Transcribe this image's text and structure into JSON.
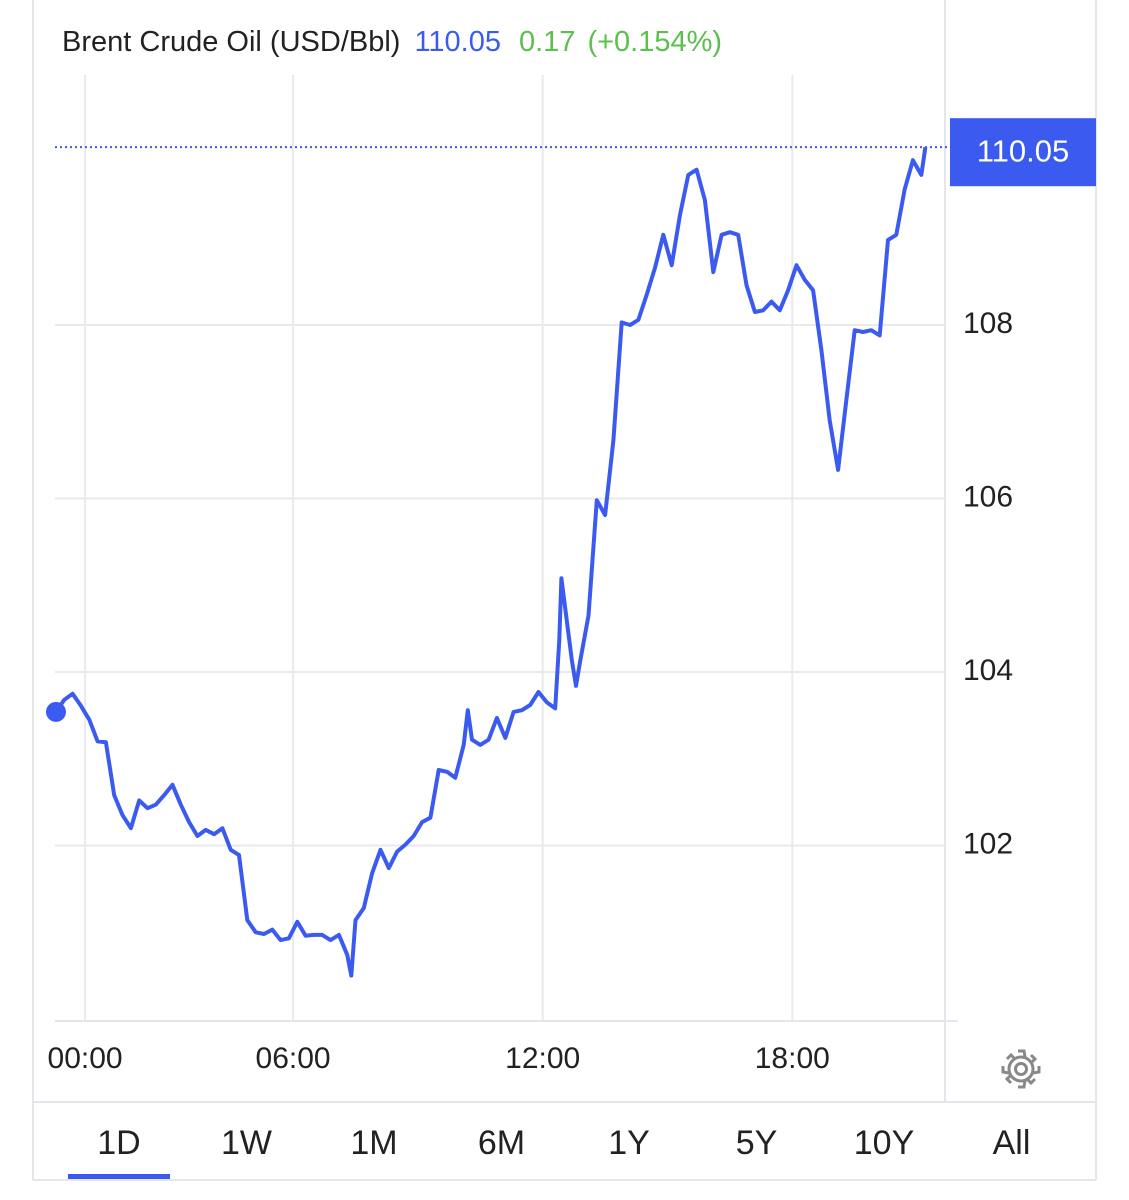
{
  "chart_data": {
    "type": "line",
    "title": "Brent Crude Oil (USD/Bbl)",
    "price": 110.05,
    "change": 0.17,
    "change_percent_label": "(+0.154%)",
    "x": [
      0.3,
      0.5,
      0.7,
      0.9,
      1.1,
      1.3,
      1.5,
      1.7,
      1.9,
      2.1,
      2.3,
      2.5,
      2.7,
      2.9,
      3.1,
      3.3,
      3.5,
      3.7,
      3.9,
      4.1,
      4.3,
      4.5,
      4.7,
      4.9,
      5.1,
      5.3,
      5.5,
      5.7,
      5.9,
      6.1,
      6.3,
      6.5,
      6.7,
      6.9,
      7.1,
      7.3,
      7.4,
      7.5,
      7.7,
      7.9,
      8.1,
      8.3,
      8.5,
      8.7,
      8.9,
      9.1,
      9.3,
      9.5,
      9.7,
      9.9,
      10.1,
      10.2,
      10.3,
      10.5,
      10.7,
      10.9,
      11.1,
      11.3,
      11.5,
      11.7,
      11.9,
      12.1,
      12.3,
      12.4,
      12.45,
      12.7,
      12.8,
      12.9,
      13.1,
      13.3,
      13.5,
      13.7,
      13.9,
      14.1,
      14.3,
      14.5,
      14.7,
      14.9,
      15.1,
      15.3,
      15.5,
      15.7,
      15.9,
      16.1,
      16.3,
      16.5,
      16.7,
      16.9,
      17.1,
      17.3,
      17.5,
      17.7,
      17.9,
      18.1,
      18.3,
      18.5,
      18.7,
      18.9,
      19.1,
      19.3,
      19.5,
      19.7,
      19.9,
      20.1,
      20.3,
      20.5,
      20.7,
      20.9,
      21.1,
      21.2
    ],
    "series": [
      {
        "name": "Brent Crude Oil",
        "color": "#3b5bf0",
        "values": [
          103.54,
          103.68,
          103.75,
          103.61,
          103.45,
          103.2,
          103.19,
          102.58,
          102.35,
          102.2,
          102.52,
          102.43,
          102.47,
          102.58,
          102.7,
          102.47,
          102.27,
          102.11,
          102.18,
          102.13,
          102.2,
          101.95,
          101.89,
          101.14,
          101.0,
          100.98,
          101.03,
          100.91,
          100.93,
          101.12,
          100.96,
          100.97,
          100.97,
          100.91,
          100.97,
          100.74,
          100.5,
          101.14,
          101.28,
          101.68,
          101.95,
          101.74,
          101.93,
          102.01,
          102.11,
          102.27,
          102.32,
          102.87,
          102.85,
          102.78,
          103.16,
          103.56,
          103.22,
          103.16,
          103.22,
          103.47,
          103.24,
          103.54,
          103.56,
          103.62,
          103.77,
          103.65,
          103.58,
          104.37,
          105.08,
          104.14,
          103.84,
          104.12,
          104.65,
          105.98,
          105.81,
          106.67,
          108.03,
          108.0,
          108.06,
          108.35,
          108.66,
          109.04,
          108.69,
          109.27,
          109.73,
          109.79,
          109.44,
          108.61,
          109.04,
          109.07,
          109.04,
          108.46,
          108.15,
          108.17,
          108.27,
          108.17,
          108.4,
          108.69,
          108.52,
          108.4,
          107.71,
          106.9,
          106.33,
          107.14,
          107.94,
          107.92,
          107.94,
          107.88,
          108.98,
          109.04,
          109.56,
          109.9,
          109.73,
          110.05
        ]
      }
    ],
    "xlim": [
      0,
      22
    ],
    "xticks": [
      {
        "value": 1,
        "label": "00:00"
      },
      {
        "value": 6,
        "label": "06:00"
      },
      {
        "value": 12,
        "label": "12:00"
      },
      {
        "value": 18,
        "label": "18:00"
      }
    ],
    "ylim": [
      100,
      111.5
    ],
    "yticks": [
      102,
      104,
      106,
      108
    ],
    "grid": true,
    "ranges": [
      "1D",
      "1W",
      "1M",
      "6M",
      "1Y",
      "5Y",
      "10Y",
      "All"
    ],
    "active_range_index": 0
  }
}
